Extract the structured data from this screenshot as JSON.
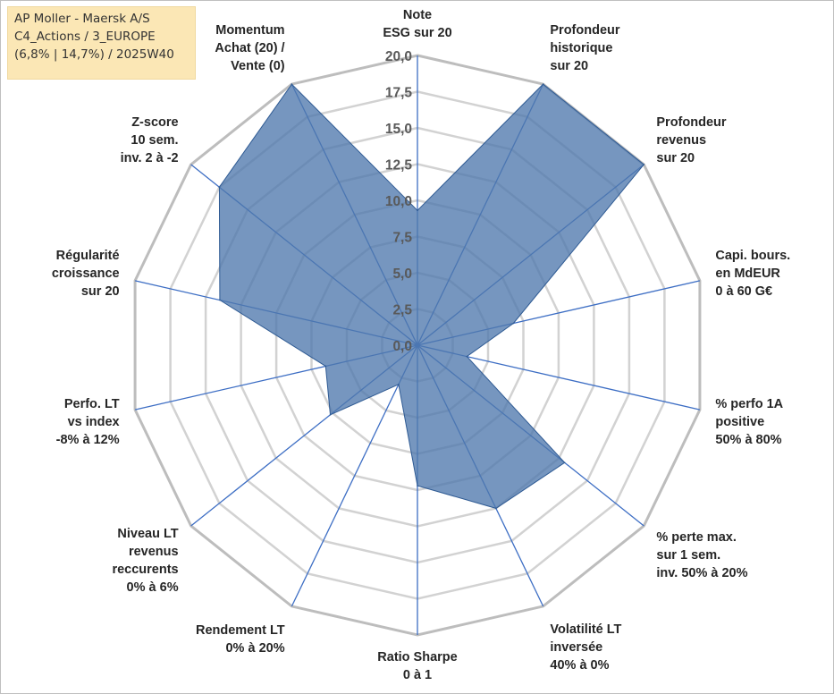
{
  "info": {
    "line1": "AP Moller - Maersk A/S",
    "line2": "C4_Actions / 3_EUROPE",
    "line3": "(6,8% | 14,7%) / 2025W40"
  },
  "chart_data": {
    "type": "radar",
    "title": "",
    "rmin": 0,
    "rmax": 20,
    "ticks": [
      "0,0",
      "2,5",
      "5,0",
      "7,5",
      "10,0",
      "12,5",
      "15,0",
      "17,5",
      "20,0"
    ],
    "axes": [
      {
        "lines": [
          "Note",
          "ESG sur 20"
        ]
      },
      {
        "lines": [
          "Profondeur",
          "historique",
          "sur 20"
        ]
      },
      {
        "lines": [
          "Profondeur",
          "revenus",
          "sur 20"
        ]
      },
      {
        "lines": [
          "Capi. bours.",
          "en MdEUR",
          "0 à 60 G€"
        ]
      },
      {
        "lines": [
          "% perfo 1A",
          "positive",
          "50% à 80%"
        ]
      },
      {
        "lines": [
          "% perte max.",
          "sur 1 sem.",
          "inv. 50% à 20%"
        ]
      },
      {
        "lines": [
          "Volatilité LT",
          "inversée",
          "40% à 0%"
        ]
      },
      {
        "lines": [
          "Ratio Sharpe",
          "0 à 1"
        ]
      },
      {
        "lines": [
          "Rendement LT",
          "0% à 20%"
        ]
      },
      {
        "lines": [
          "Niveau LT",
          "revenus",
          "reccurents",
          "0% à 6%"
        ]
      },
      {
        "lines": [
          "Perfo. LT",
          "vs index",
          "-8% à 12%"
        ]
      },
      {
        "lines": [
          "Régularité",
          "croissance",
          "sur 20"
        ]
      },
      {
        "lines": [
          "Z-score",
          "10 sem.",
          "inv. 2 à -2"
        ]
      },
      {
        "lines": [
          "Momentum",
          "Achat (20) /",
          "Vente (0)"
        ]
      }
    ],
    "series": [
      {
        "name": "AP Moller - Maersk A/S",
        "values": [
          9.3,
          20.0,
          20.0,
          6.8,
          3.5,
          13.0,
          12.5,
          9.7,
          3.0,
          7.7,
          6.5,
          14.0,
          17.5,
          20.0
        ],
        "fill": "#4f78ad",
        "stroke": "#2e5a93"
      }
    ]
  }
}
